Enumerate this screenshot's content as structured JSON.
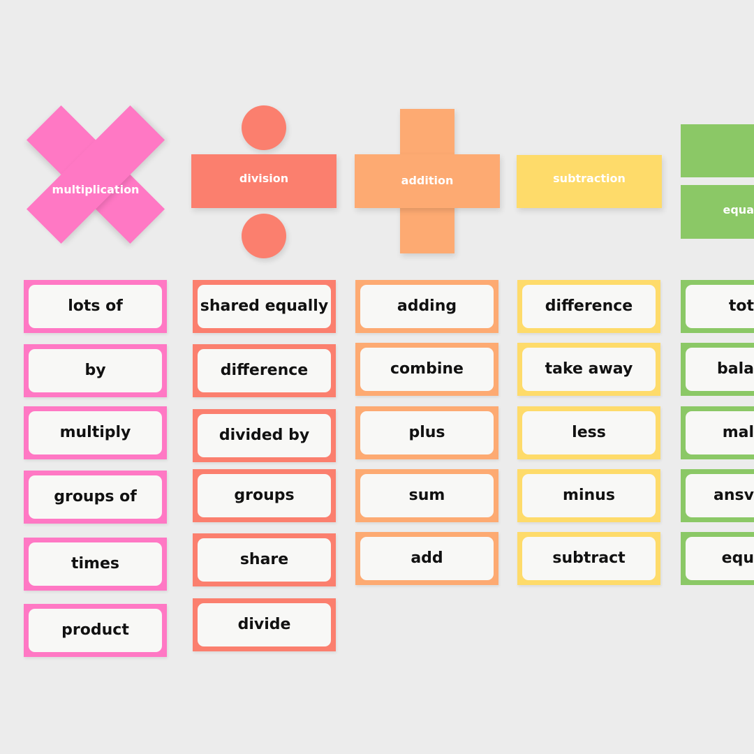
{
  "colors": {
    "multiplication": "#ff78c4",
    "division": "#fb7f6e",
    "addition": "#fdaa72",
    "subtraction": "#fedb6a",
    "equals": "#8bc866",
    "background": "#ececec"
  },
  "headers": {
    "multiplication": "multiplication",
    "division": "division",
    "addition": "addition",
    "subtraction": "subtraction",
    "equals": "equa"
  },
  "columns": {
    "multiplication": [
      "lots of",
      "by",
      "multiply",
      "groups of",
      "times",
      "product"
    ],
    "division": [
      "shared equally",
      "difference",
      "divided by",
      "groups",
      "share",
      "divide"
    ],
    "addition": [
      "adding",
      "combine",
      "plus",
      "sum",
      "add"
    ],
    "subtraction": [
      "difference",
      "take away",
      "less",
      "minus",
      "subtract"
    ],
    "equals": [
      "tot",
      "bala",
      "mal",
      "ansv",
      "equ"
    ]
  }
}
